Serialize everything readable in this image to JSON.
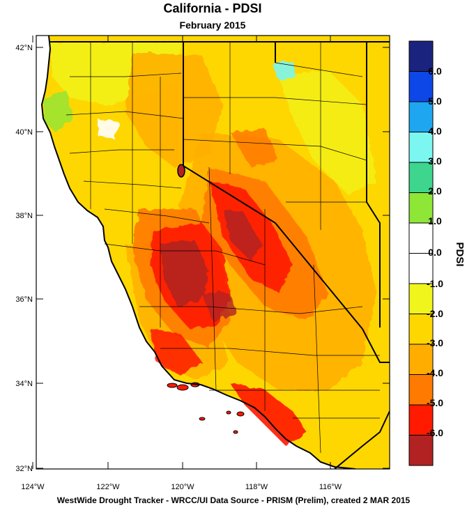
{
  "title": "California - PDSI",
  "subtitle": "February 2015",
  "footer": "WestWide Drought Tracker - WRCC/UI  Data Source - PRISM (Prelim), created  2 MAR 2015",
  "colorbar": {
    "title": "PDSI",
    "labels": [
      "6.0",
      "5.0",
      "4.0",
      "3.0",
      "2.0",
      "1.0",
      "0.0",
      "-1.0",
      "-2.0",
      "-3.0",
      "-4.0",
      "-5.0",
      "-6.0"
    ],
    "colors": [
      "#1a237e",
      "#0d47e8",
      "#1ea7f0",
      "#7cf6f0",
      "#3ed58e",
      "#8ee637",
      "#ffffff",
      "#ffffff",
      "#f0f51c",
      "#ffd700",
      "#ffae00",
      "#ff7a00",
      "#ff1a00",
      "#b22222"
    ]
  },
  "map": {
    "lat_labels": [
      "42°N",
      "40°N",
      "38°N",
      "36°N",
      "34°N",
      "32°N"
    ],
    "lon_labels": [
      "124°W",
      "122°W",
      "120°W",
      "118°W",
      "116°W"
    ],
    "ocean_color": "#ffffff",
    "land_base_color": "#ffd700"
  }
}
